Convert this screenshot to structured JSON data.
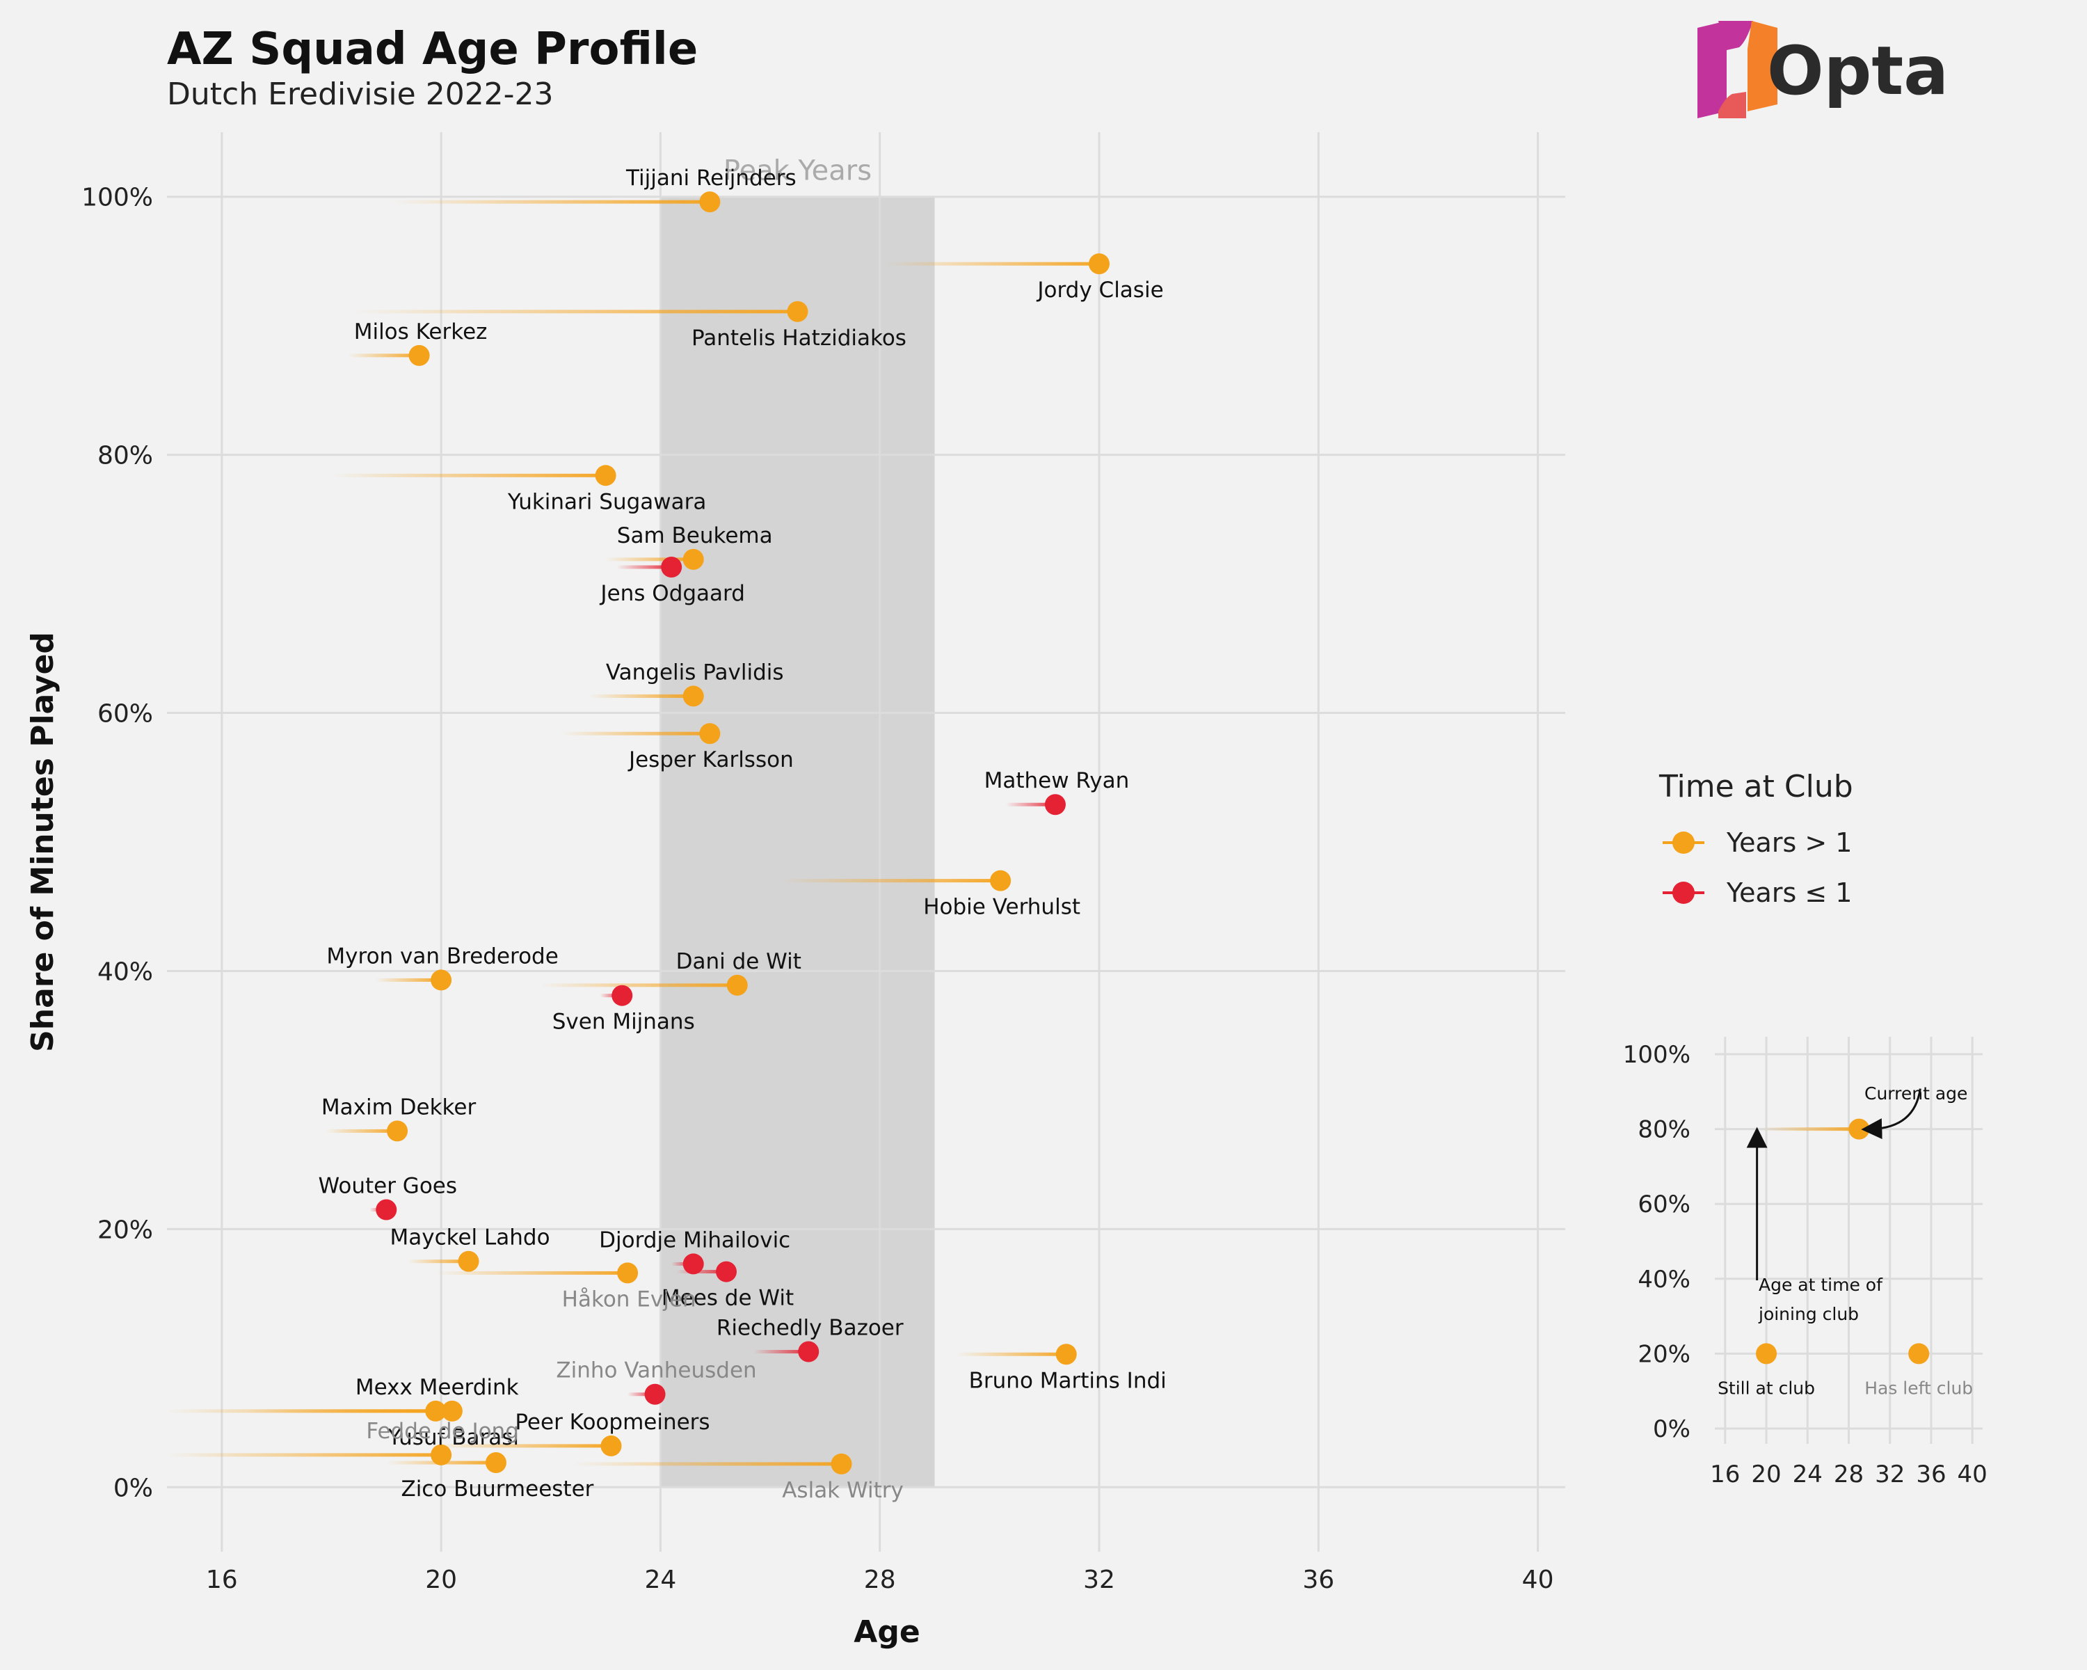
{
  "header": {
    "title": "AZ Squad Age Profile",
    "subtitle": "Dutch Eredivisie 2022-23"
  },
  "logo": {
    "text": "Opta",
    "icon": "opta-logo-icon",
    "colors": [
      "#c2339b",
      "#f4802a"
    ]
  },
  "colors": {
    "long": "#f5a21b",
    "short": "#e52233",
    "peak": "#d4d4d4",
    "grid": "#dcdcdc"
  },
  "chart_data": {
    "type": "scatter",
    "xlabel": "Age",
    "ylabel": "Share of Minutes Played",
    "xlim": [
      15,
      40.5
    ],
    "ylim": [
      -5,
      105
    ],
    "xticks": [
      16,
      20,
      24,
      28,
      32,
      36,
      40
    ],
    "yticks": [
      0,
      20,
      40,
      60,
      80,
      100
    ],
    "ytick_labels": [
      "0%",
      "20%",
      "40%",
      "60%",
      "80%",
      "100%"
    ],
    "peak": {
      "label": "Peak Years",
      "from": 24,
      "to": 29
    },
    "players": [
      {
        "name": "Tijjani Reijnders",
        "age": 24.9,
        "joined": 19.1,
        "share": 99.6,
        "group": "long",
        "left": false,
        "label_pos": "above"
      },
      {
        "name": "Jordy Clasie",
        "age": 32.0,
        "joined": 28.1,
        "share": 94.8,
        "group": "long",
        "left": false,
        "label_pos": "below"
      },
      {
        "name": "Pantelis Hatzidiakos",
        "age": 26.5,
        "joined": 18.4,
        "share": 91.1,
        "group": "long",
        "left": false,
        "label_pos": "below"
      },
      {
        "name": "Milos Kerkez",
        "age": 19.6,
        "joined": 18.3,
        "share": 87.7,
        "group": "long",
        "left": false,
        "label_pos": "above"
      },
      {
        "name": "Yukinari Sugawara",
        "age": 23.0,
        "joined": 18.0,
        "share": 78.4,
        "group": "long",
        "left": false,
        "label_pos": "below"
      },
      {
        "name": "Sam Beukema",
        "age": 24.6,
        "joined": 23.0,
        "share": 71.9,
        "group": "long",
        "left": false,
        "label_pos": "above"
      },
      {
        "name": "Jens Odgaard",
        "age": 24.2,
        "joined": 23.2,
        "share": 71.3,
        "group": "short",
        "left": false,
        "label_pos": "below"
      },
      {
        "name": "Vangelis Pavlidis",
        "age": 24.6,
        "joined": 22.7,
        "share": 61.3,
        "group": "long",
        "left": false,
        "label_pos": "above"
      },
      {
        "name": "Jesper Karlsson",
        "age": 24.9,
        "joined": 22.2,
        "share": 58.4,
        "group": "long",
        "left": false,
        "label_pos": "below"
      },
      {
        "name": "Mathew Ryan",
        "age": 31.2,
        "joined": 30.3,
        "share": 52.9,
        "group": "short",
        "left": false,
        "label_pos": "above"
      },
      {
        "name": "Hobie Verhulst",
        "age": 30.2,
        "joined": 26.2,
        "share": 47.0,
        "group": "long",
        "left": false,
        "label_pos": "below"
      },
      {
        "name": "Myron van Brederode",
        "age": 20.0,
        "joined": 18.8,
        "share": 39.3,
        "group": "long",
        "left": false,
        "label_pos": "above"
      },
      {
        "name": "Dani de Wit",
        "age": 25.4,
        "joined": 21.8,
        "share": 38.9,
        "group": "long",
        "left": false,
        "label_pos": "above"
      },
      {
        "name": "Sven Mijnans",
        "age": 23.3,
        "joined": 22.9,
        "share": 38.1,
        "group": "short",
        "left": false,
        "label_pos": "below"
      },
      {
        "name": "Maxim Dekker",
        "age": 19.2,
        "joined": 17.9,
        "share": 27.6,
        "group": "long",
        "left": false,
        "label_pos": "above"
      },
      {
        "name": "Wouter Goes",
        "age": 19.0,
        "joined": 18.7,
        "share": 21.5,
        "group": "short",
        "left": false,
        "label_pos": "above"
      },
      {
        "name": "Mayckel Lahdo",
        "age": 20.5,
        "joined": 19.4,
        "share": 17.5,
        "group": "long",
        "left": false,
        "label_pos": "above"
      },
      {
        "name": "Djordje Mihailovic",
        "age": 24.6,
        "joined": 24.2,
        "share": 17.3,
        "group": "short",
        "left": false,
        "label_pos": "above"
      },
      {
        "name": "Mees de Wit",
        "age": 25.2,
        "joined": 24.3,
        "share": 16.7,
        "group": "short",
        "left": false,
        "label_pos": "below"
      },
      {
        "name": "Håkon Evjen",
        "age": 23.4,
        "joined": 19.9,
        "share": 16.6,
        "group": "long",
        "left": true,
        "label_pos": "below"
      },
      {
        "name": "Riechedly Bazoer",
        "age": 26.7,
        "joined": 25.7,
        "share": 10.5,
        "group": "short",
        "left": false,
        "label_pos": "above"
      },
      {
        "name": "Bruno Martins Indi",
        "age": 31.4,
        "joined": 29.4,
        "share": 10.3,
        "group": "long",
        "left": false,
        "label_pos": "below"
      },
      {
        "name": "Zinho Vanheusden",
        "age": 23.9,
        "joined": 23.4,
        "share": 7.2,
        "group": "short",
        "left": true,
        "label_pos": "above"
      },
      {
        "name": "Mexx Meerdink",
        "age": 19.9,
        "joined": 15.0,
        "share": 5.9,
        "group": "long",
        "left": false,
        "label_pos": "above"
      },
      {
        "name": "Yusuf Barasi",
        "age": 20.2,
        "joined": 16.5,
        "share": 5.9,
        "group": "long",
        "left": false,
        "label_pos": "below"
      },
      {
        "name": "Peer Koopmeiners",
        "age": 23.1,
        "joined": 19.8,
        "share": 3.2,
        "group": "long",
        "left": false,
        "label_pos": "above"
      },
      {
        "name": "Fedde de Jong",
        "age": 20.0,
        "joined": 15.0,
        "share": 2.5,
        "group": "long",
        "left": true,
        "label_pos": "above"
      },
      {
        "name": "Zico Buurmeester",
        "age": 21.0,
        "joined": 19.0,
        "share": 1.9,
        "group": "long",
        "left": false,
        "label_pos": "below"
      },
      {
        "name": "Aslak Witry",
        "age": 27.3,
        "joined": 22.4,
        "share": 1.8,
        "group": "long",
        "left": true,
        "label_pos": "below"
      }
    ]
  },
  "legend": {
    "title": "Time at Club",
    "items": [
      {
        "label": "Years > 1",
        "key": "long"
      },
      {
        "label": "Years ≤ 1",
        "key": "short"
      }
    ]
  },
  "inset": {
    "xticks": [
      16,
      20,
      24,
      28,
      32,
      36,
      40
    ],
    "yticks": [
      "0%",
      "20%",
      "40%",
      "60%",
      "80%",
      "100%"
    ],
    "example": {
      "joined": 19.5,
      "age": 29.0,
      "share": 80
    },
    "still_at_club": {
      "age": 20.0,
      "share": 20,
      "label": "Still at club"
    },
    "has_left_club": {
      "age": 34.8,
      "share": 20,
      "label": "Has left club"
    },
    "notes": {
      "current_age": "Current age",
      "joining_line1": "Age at time of",
      "joining_line2": "joining club"
    }
  }
}
